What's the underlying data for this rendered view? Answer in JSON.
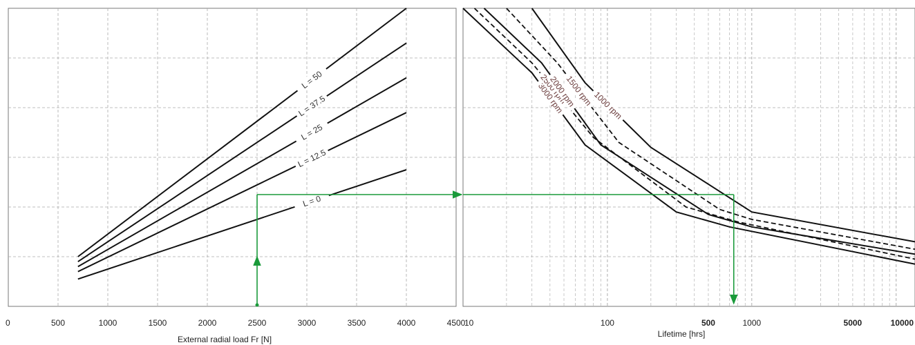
{
  "chart_data": [
    {
      "type": "line",
      "xlabel": "External radial load Fr [N]",
      "ylabel": "",
      "xlim": [
        0,
        4500
      ],
      "ylim": [
        0,
        6
      ],
      "grid": true,
      "x_ticks": [
        "0",
        "500",
        "1000",
        "1500",
        "2000",
        "2500",
        "3000",
        "3500",
        "4000",
        "4500"
      ],
      "series": [
        {
          "name": "L = 50",
          "x": [
            700,
            4000
          ],
          "y": [
            1.0,
            6.0
          ]
        },
        {
          "name": "L = 37.5",
          "x": [
            700,
            4000
          ],
          "y": [
            0.9,
            5.3
          ]
        },
        {
          "name": "L = 25",
          "x": [
            700,
            4000
          ],
          "y": [
            0.8,
            4.6
          ]
        },
        {
          "name": "L = 12.5",
          "x": [
            700,
            4000
          ],
          "y": [
            0.7,
            3.9
          ]
        },
        {
          "name": "L = 0",
          "x": [
            700,
            4000
          ],
          "y": [
            0.55,
            2.75
          ]
        }
      ],
      "annotation": {
        "start_x": 2500,
        "start_y": 0,
        "end_y": 2.25,
        "arrow_to": "right"
      }
    },
    {
      "type": "line",
      "xlabel": "Lifetime [hrs]",
      "ylabel": "",
      "xscale": "log",
      "xlim": [
        10,
        13500
      ],
      "ylim": [
        0,
        6
      ],
      "grid": true,
      "x_ticks": [
        {
          "value": 10,
          "label": "10",
          "bold": false
        },
        {
          "value": 100,
          "label": "100",
          "bold": false
        },
        {
          "value": 500,
          "label": "500",
          "bold": true
        },
        {
          "value": 1000,
          "label": "1000",
          "bold": false
        },
        {
          "value": 5000,
          "label": "5000",
          "bold": true
        },
        {
          "value": 10000,
          "label": "10000",
          "bold": true
        }
      ],
      "series": [
        {
          "name": "3000 rpm",
          "style": "solid",
          "x": [
            10,
            30,
            70,
            300,
            700,
            13500
          ],
          "y": [
            6.0,
            4.7,
            3.25,
            1.9,
            1.6,
            0.85
          ]
        },
        {
          "name": "2500 rpm",
          "style": "dashed",
          "x": [
            12,
            30,
            80,
            350,
            800,
            13500
          ],
          "y": [
            6.0,
            4.9,
            3.4,
            2.0,
            1.7,
            0.95
          ]
        },
        {
          "name": "2000 rpm",
          "style": "solid",
          "x": [
            14,
            35,
            90,
            500,
            1000,
            13500
          ],
          "y": [
            6.0,
            4.9,
            3.25,
            1.85,
            1.6,
            1.05
          ]
        },
        {
          "name": "1500 rpm",
          "style": "dashed",
          "x": [
            20,
            45,
            120,
            600,
            1000,
            13500
          ],
          "y": [
            6.0,
            4.9,
            3.3,
            1.95,
            1.75,
            1.15
          ]
        },
        {
          "name": "1000 rpm",
          "style": "solid",
          "x": [
            30,
            70,
            200,
            1000,
            13500
          ],
          "y": [
            6.0,
            4.5,
            3.2,
            1.9,
            1.3
          ]
        }
      ],
      "annotation": {
        "start_y": 2.25,
        "start_x": 10,
        "vertical_x": 750,
        "end_y": 0
      }
    }
  ]
}
